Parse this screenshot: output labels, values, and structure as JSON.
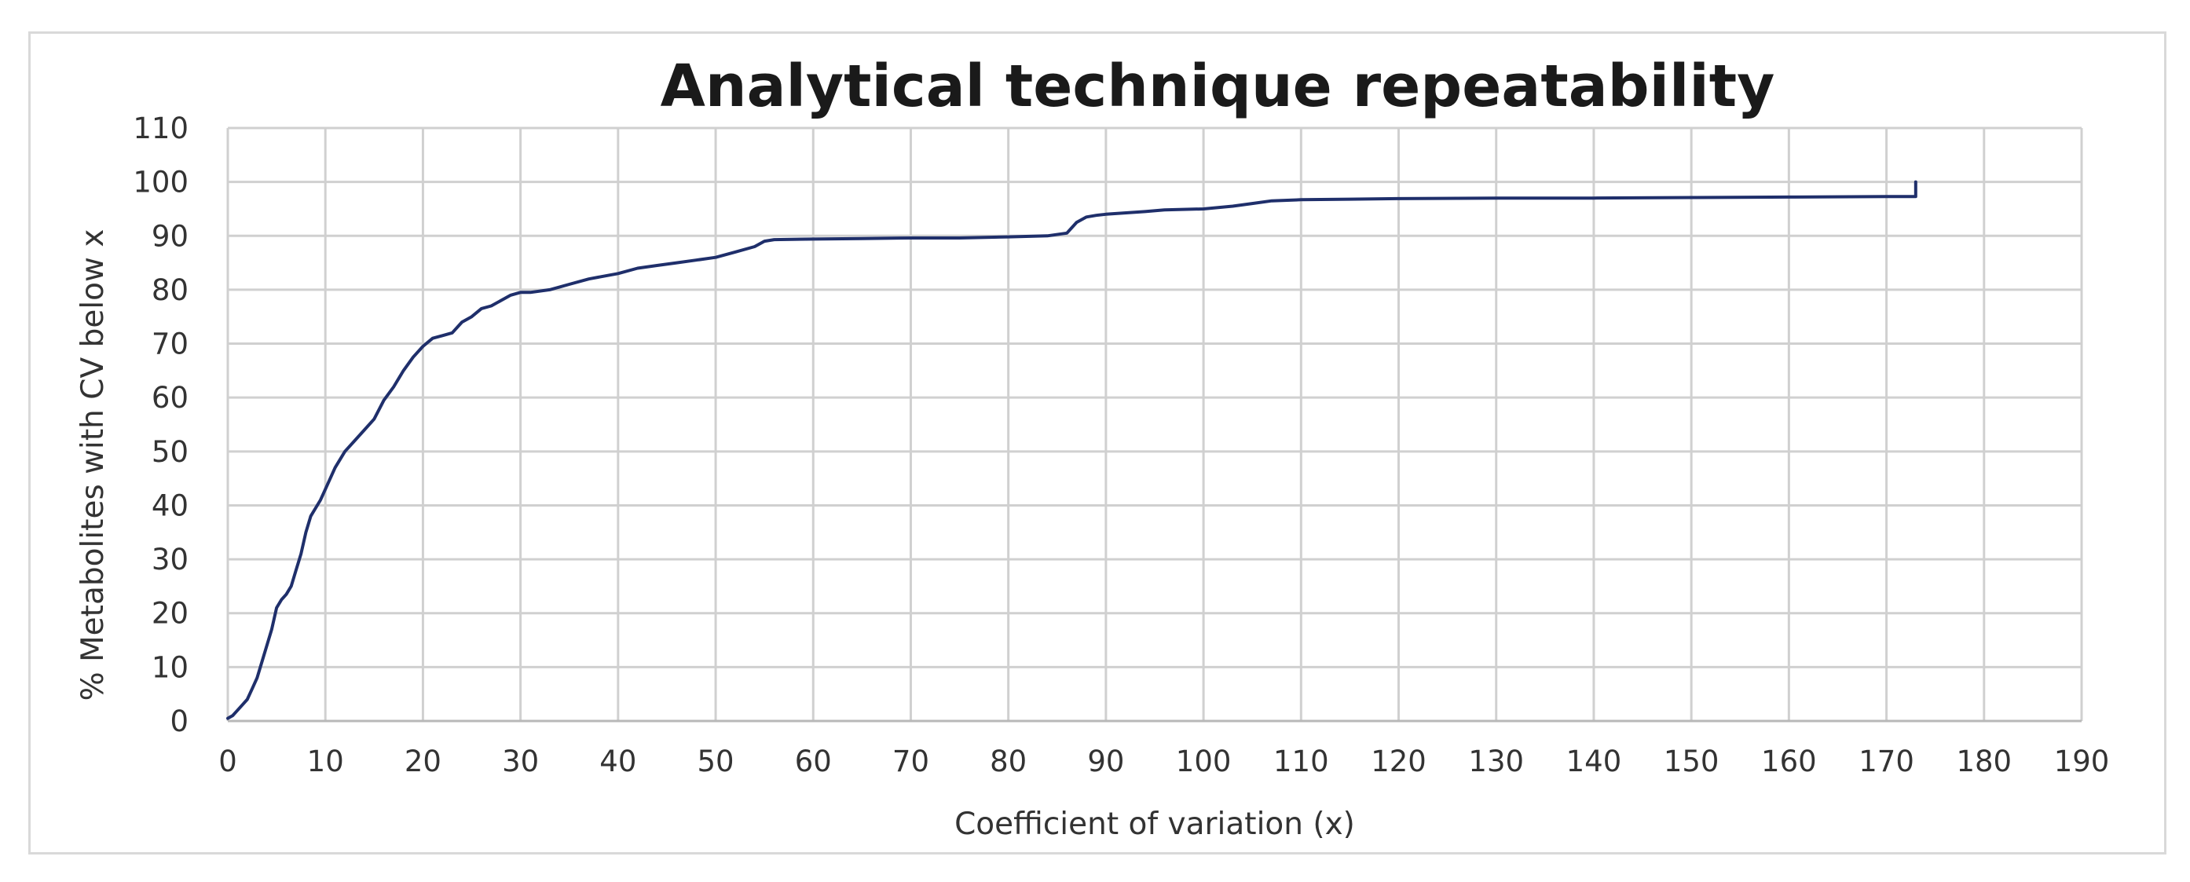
{
  "chart_data": {
    "type": "line",
    "title": "Analytical technique repeatability",
    "xlabel": "Coefficient of variation (x)",
    "ylabel": "% Metabolites with CV below x",
    "xlim": [
      0,
      190
    ],
    "ylim": [
      0,
      110
    ],
    "x_ticks": [
      0,
      10,
      20,
      30,
      40,
      50,
      60,
      70,
      80,
      90,
      100,
      110,
      120,
      130,
      140,
      150,
      160,
      170,
      180,
      190
    ],
    "y_ticks": [
      0,
      10,
      20,
      30,
      40,
      50,
      60,
      70,
      80,
      90,
      100,
      110
    ],
    "grid": true,
    "legend": "none",
    "series": [
      {
        "color": "#1f2f6b",
        "x": [
          0,
          0.5,
          1,
          1.5,
          2,
          2.5,
          3,
          3.5,
          4,
          4.5,
          5,
          5.5,
          6,
          6.5,
          7,
          7.5,
          8,
          8.5,
          9,
          9.5,
          10,
          11,
          12,
          13,
          14,
          15,
          16,
          17,
          18,
          19,
          20,
          21,
          22,
          23,
          24,
          25,
          26,
          27,
          28,
          29,
          30,
          31,
          33,
          35,
          37,
          40,
          42,
          44,
          46,
          48,
          50,
          52,
          54,
          55,
          56,
          60,
          65,
          70,
          75,
          80,
          84,
          86,
          87,
          88,
          89,
          90,
          94,
          96,
          100,
          103,
          105,
          107,
          110,
          115,
          120,
          130,
          140,
          150,
          160,
          170,
          173,
          173
        ],
        "y": [
          0.5,
          1,
          2,
          3,
          4,
          6,
          8,
          11,
          14,
          17,
          21,
          22.5,
          23.5,
          25,
          28,
          31,
          35,
          38,
          39.5,
          41,
          43,
          47,
          50,
          52,
          54,
          56,
          59.5,
          62,
          65,
          67.5,
          69.5,
          71,
          71.5,
          72,
          74,
          75,
          76.5,
          77,
          78,
          79,
          79.5,
          79.5,
          80,
          81,
          82,
          83,
          84,
          84.5,
          85,
          85.5,
          86,
          87,
          88,
          89,
          89.3,
          89.4,
          89.5,
          89.6,
          89.6,
          89.8,
          90,
          90.5,
          92.5,
          93.5,
          93.8,
          94,
          94.5,
          94.8,
          95,
          95.5,
          96,
          96.5,
          96.7,
          96.8,
          96.9,
          97,
          97,
          97.1,
          97.2,
          97.3,
          97.3,
          100
        ]
      }
    ]
  }
}
